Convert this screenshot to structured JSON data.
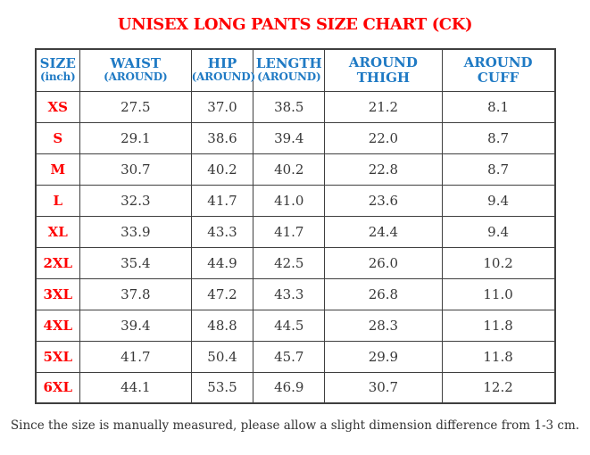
{
  "page": {
    "title": "UNISEX LONG PANTS SIZE CHART (CK)",
    "footnote": "Since the size is manually measured, please allow a slight dimension difference from 1-3 cm."
  },
  "colors": {
    "title_red": "#fe0000",
    "header_blue": "#1f7ac4",
    "size_label_red": "#fe0000",
    "value_text": "#383838",
    "border": "#3f3f3f",
    "background": "#ffffff"
  },
  "table": {
    "unit": "inch",
    "columns": [
      {
        "line1": "SIZE",
        "line2": "(inch)",
        "line2_small": true
      },
      {
        "line1": "WAIST",
        "line2": "(AROUND)",
        "line2_small": true
      },
      {
        "line1": "HIP",
        "line2": "(AROUND)",
        "line2_small": true
      },
      {
        "line1": "LENGTH",
        "line2": "(AROUND)",
        "line2_small": true
      },
      {
        "line1": "AROUND",
        "line2": "THIGH",
        "line2_small": false
      },
      {
        "line1": "AROUND",
        "line2": "CUFF",
        "line2_small": false
      }
    ],
    "rows": [
      {
        "size": "XS",
        "waist": "27.5",
        "hip": "37.0",
        "length": "38.5",
        "thigh": "21.2",
        "cuff": "8.1"
      },
      {
        "size": "S",
        "waist": "29.1",
        "hip": "38.6",
        "length": "39.4",
        "thigh": "22.0",
        "cuff": "8.7"
      },
      {
        "size": "M",
        "waist": "30.7",
        "hip": "40.2",
        "length": "40.2",
        "thigh": "22.8",
        "cuff": "8.7"
      },
      {
        "size": "L",
        "waist": "32.3",
        "hip": "41.7",
        "length": "41.0",
        "thigh": "23.6",
        "cuff": "9.4"
      },
      {
        "size": "XL",
        "waist": "33.9",
        "hip": "43.3",
        "length": "41.7",
        "thigh": "24.4",
        "cuff": "9.4"
      },
      {
        "size": "2XL",
        "waist": "35.4",
        "hip": "44.9",
        "length": "42.5",
        "thigh": "26.0",
        "cuff": "10.2"
      },
      {
        "size": "3XL",
        "waist": "37.8",
        "hip": "47.2",
        "length": "43.3",
        "thigh": "26.8",
        "cuff": "11.0"
      },
      {
        "size": "4XL",
        "waist": "39.4",
        "hip": "48.8",
        "length": "44.5",
        "thigh": "28.3",
        "cuff": "11.8"
      },
      {
        "size": "5XL",
        "waist": "41.7",
        "hip": "50.4",
        "length": "45.7",
        "thigh": "29.9",
        "cuff": "11.8"
      },
      {
        "size": "6XL",
        "waist": "44.1",
        "hip": "53.5",
        "length": "46.9",
        "thigh": "30.7",
        "cuff": "12.2"
      }
    ]
  }
}
